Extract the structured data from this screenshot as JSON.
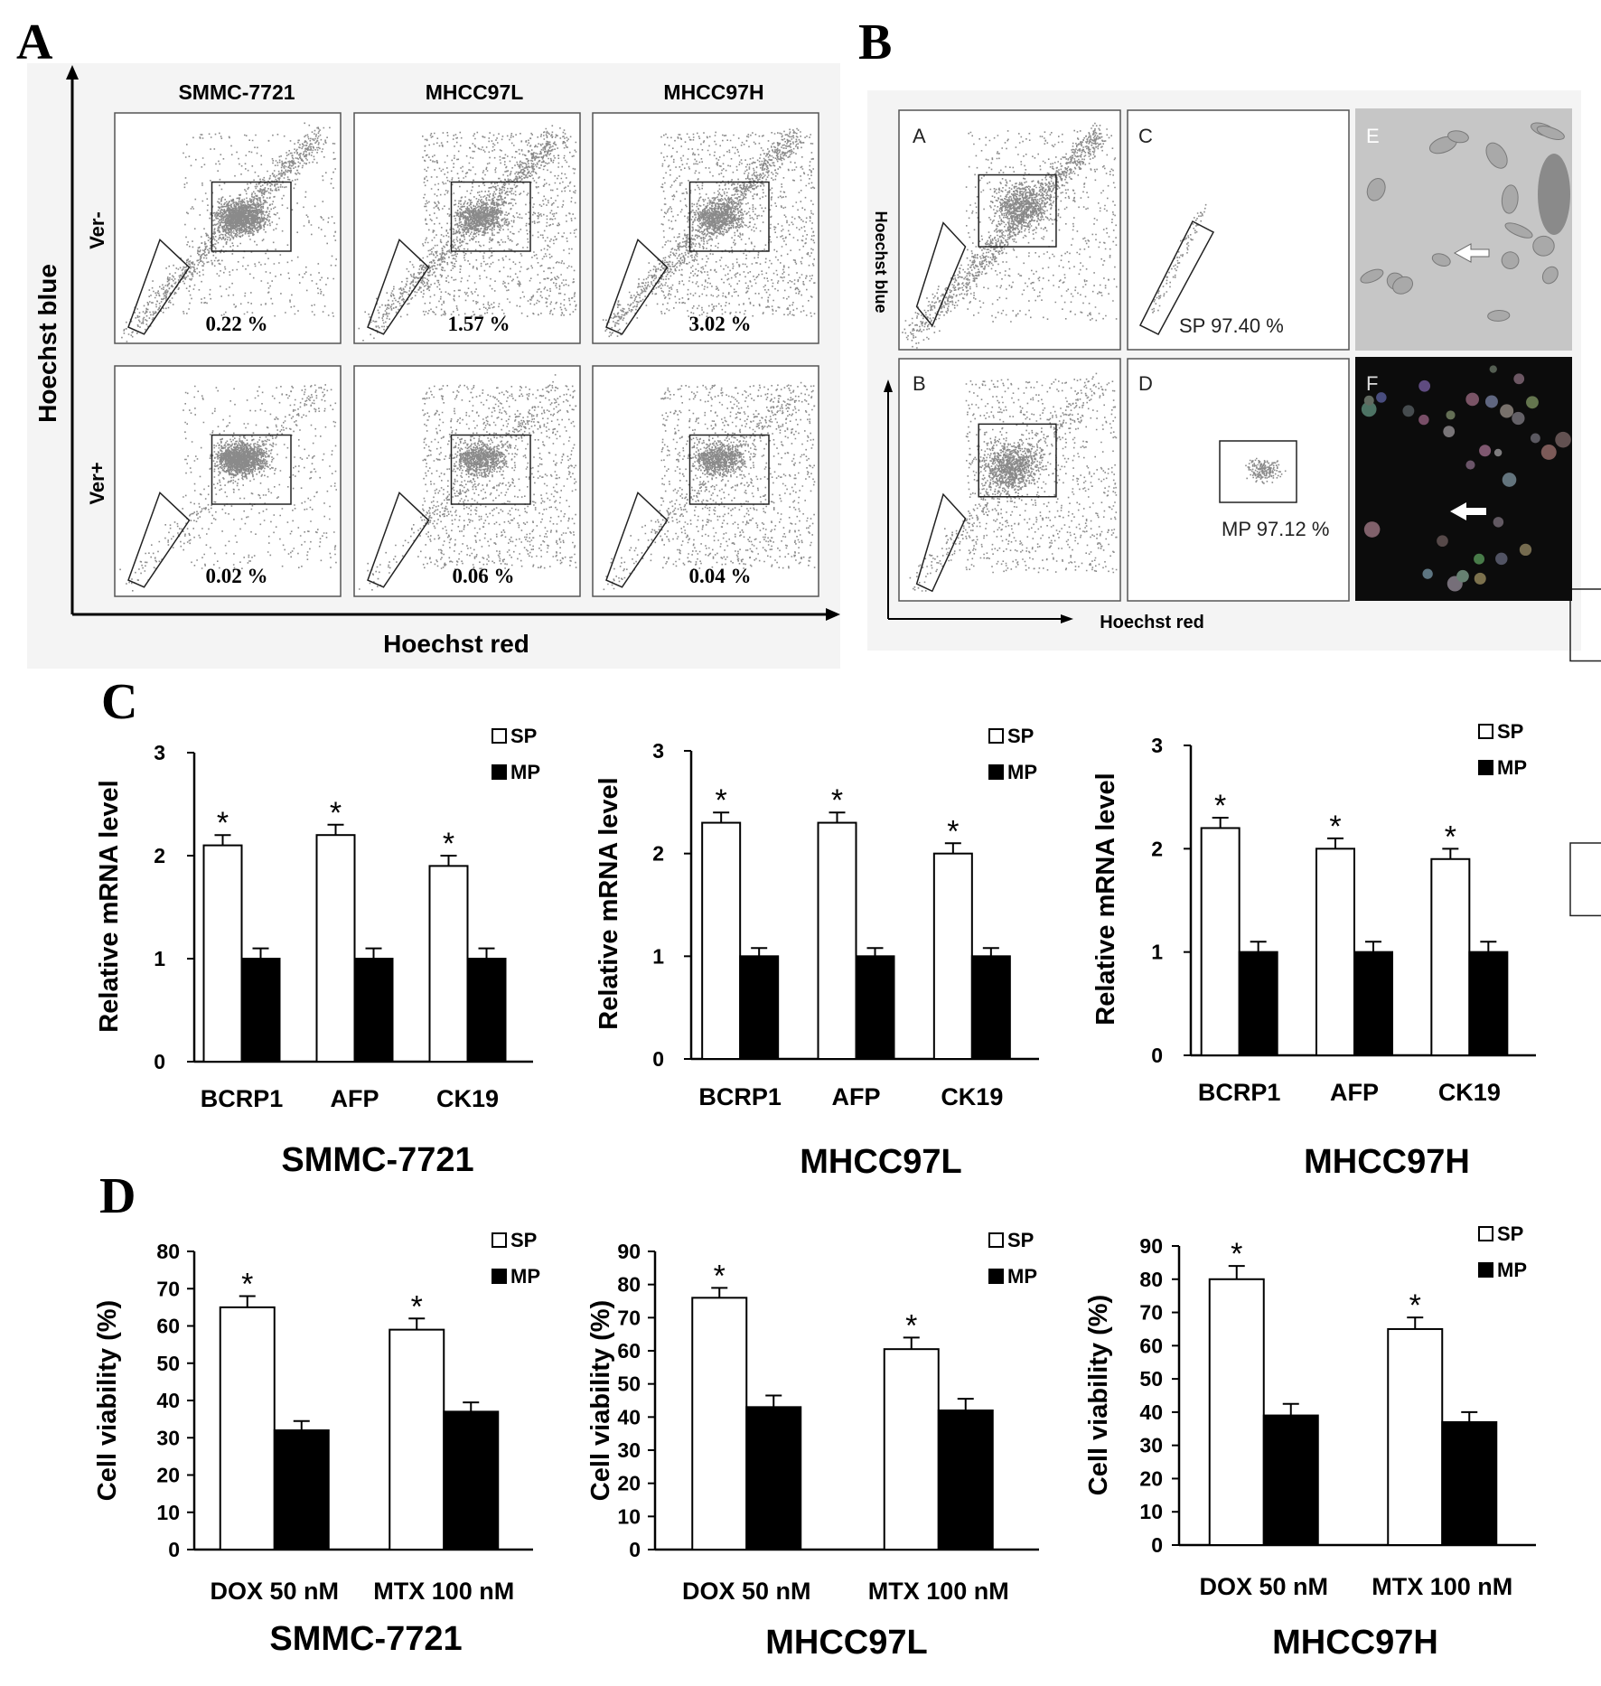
{
  "panel_labels": [
    "A",
    "B",
    "C",
    "D"
  ],
  "panel_a": {
    "columns": [
      "SMMC-7721",
      "MHCC97L",
      "MHCC97H"
    ],
    "rows": [
      "Ver-",
      "Ver+"
    ],
    "percent_labels": [
      [
        "0.22 %",
        "1.57 %",
        "3.02 %"
      ],
      [
        "0.02 %",
        "0.06 %",
        "0.04 %"
      ]
    ],
    "y_axis_label": "Hoechst  blue",
    "x_axis_label": "Hoechst  red"
  },
  "panel_b": {
    "sublabels": [
      "A",
      "C",
      "E",
      "B",
      "D",
      "F"
    ],
    "y_axis_label": "Hoechst blue",
    "x_axis_label": "Hoechst red",
    "gate_labels": {
      "sp": "SP 97.40 %",
      "mp": "MP 97.12 %"
    }
  },
  "chart_data": [
    {
      "type": "bar",
      "panel": "C",
      "cell_line": "SMMC-7721",
      "categories": [
        "BCRP1",
        "AFP",
        "CK19"
      ],
      "ylabel": "Relative mRNA level",
      "ylim": [
        0,
        3
      ],
      "yticks": [
        0,
        1,
        2,
        3
      ],
      "series": [
        {
          "name": "SP",
          "values": [
            2.1,
            2.2,
            1.9
          ],
          "errors": [
            0.1,
            0.1,
            0.1
          ],
          "significant": [
            true,
            true,
            true
          ],
          "color": "#ffffff"
        },
        {
          "name": "MP",
          "values": [
            1.0,
            1.0,
            1.0
          ],
          "errors": [
            0.1,
            0.1,
            0.1
          ],
          "significant": [
            false,
            false,
            false
          ],
          "color": "#000000"
        }
      ],
      "legend": "top-right"
    },
    {
      "type": "bar",
      "panel": "C",
      "cell_line": "MHCC97L",
      "categories": [
        "BCRP1",
        "AFP",
        "CK19"
      ],
      "ylabel": "Relative mRNA level",
      "ylim": [
        0,
        3
      ],
      "yticks": [
        0,
        1,
        2,
        3
      ],
      "series": [
        {
          "name": "SP",
          "values": [
            2.3,
            2.3,
            2.0
          ],
          "errors": [
            0.1,
            0.1,
            0.1
          ],
          "significant": [
            true,
            true,
            true
          ],
          "color": "#ffffff"
        },
        {
          "name": "MP",
          "values": [
            1.0,
            1.0,
            1.0
          ],
          "errors": [
            0.08,
            0.08,
            0.08
          ],
          "significant": [
            false,
            false,
            false
          ],
          "color": "#000000"
        }
      ],
      "legend": "top-right"
    },
    {
      "type": "bar",
      "panel": "C",
      "cell_line": "MHCC97H",
      "categories": [
        "BCRP1",
        "AFP",
        "CK19"
      ],
      "ylabel": "Relative mRNA level",
      "ylim": [
        0,
        3
      ],
      "yticks": [
        0,
        1,
        2,
        3
      ],
      "series": [
        {
          "name": "SP",
          "values": [
            2.2,
            2.0,
            1.9
          ],
          "errors": [
            0.1,
            0.1,
            0.1
          ],
          "significant": [
            true,
            true,
            true
          ],
          "color": "#ffffff"
        },
        {
          "name": "MP",
          "values": [
            1.0,
            1.0,
            1.0
          ],
          "errors": [
            0.1,
            0.1,
            0.1
          ],
          "significant": [
            false,
            false,
            false
          ],
          "color": "#000000"
        }
      ],
      "legend": "top-right"
    },
    {
      "type": "bar",
      "panel": "D",
      "cell_line": "SMMC-7721",
      "categories": [
        "DOX 50 nM",
        "MTX 100 nM"
      ],
      "ylabel": "Cell viability (%)",
      "ylim": [
        0,
        80
      ],
      "yticks": [
        0,
        10,
        20,
        30,
        40,
        50,
        60,
        70,
        80
      ],
      "series": [
        {
          "name": "SP",
          "values": [
            65,
            59
          ],
          "errors": [
            3,
            3
          ],
          "significant": [
            true,
            true
          ],
          "color": "#ffffff"
        },
        {
          "name": "MP",
          "values": [
            32,
            37
          ],
          "errors": [
            2.5,
            2.5
          ],
          "significant": [
            false,
            false
          ],
          "color": "#000000"
        }
      ],
      "legend": "top-right"
    },
    {
      "type": "bar",
      "panel": "D",
      "cell_line": "MHCC97L",
      "categories": [
        "DOX 50 nM",
        "MTX 100 nM"
      ],
      "ylabel": "Cell viability (%)",
      "ylim": [
        0,
        90
      ],
      "yticks": [
        0,
        10,
        20,
        30,
        40,
        50,
        60,
        70,
        80,
        90
      ],
      "series": [
        {
          "name": "SP",
          "values": [
            76,
            60.5
          ],
          "errors": [
            3,
            3.5
          ],
          "significant": [
            true,
            true
          ],
          "color": "#ffffff"
        },
        {
          "name": "MP",
          "values": [
            43,
            42
          ],
          "errors": [
            3.5,
            3.5
          ],
          "significant": [
            false,
            false
          ],
          "color": "#000000"
        }
      ],
      "legend": "top-right"
    },
    {
      "type": "bar",
      "panel": "D",
      "cell_line": "MHCC97H",
      "categories": [
        "DOX 50 nM",
        "MTX 100 nM"
      ],
      "ylabel": "Cell viability (%)",
      "ylim": [
        0,
        90
      ],
      "yticks": [
        0,
        10,
        20,
        30,
        40,
        50,
        60,
        70,
        80,
        90
      ],
      "series": [
        {
          "name": "SP",
          "values": [
            80,
            65
          ],
          "errors": [
            4,
            3.5
          ],
          "significant": [
            true,
            true
          ],
          "color": "#ffffff"
        },
        {
          "name": "MP",
          "values": [
            39,
            37
          ],
          "errors": [
            3.5,
            3
          ],
          "significant": [
            false,
            false
          ],
          "color": "#000000"
        }
      ],
      "legend": "top-right"
    }
  ]
}
